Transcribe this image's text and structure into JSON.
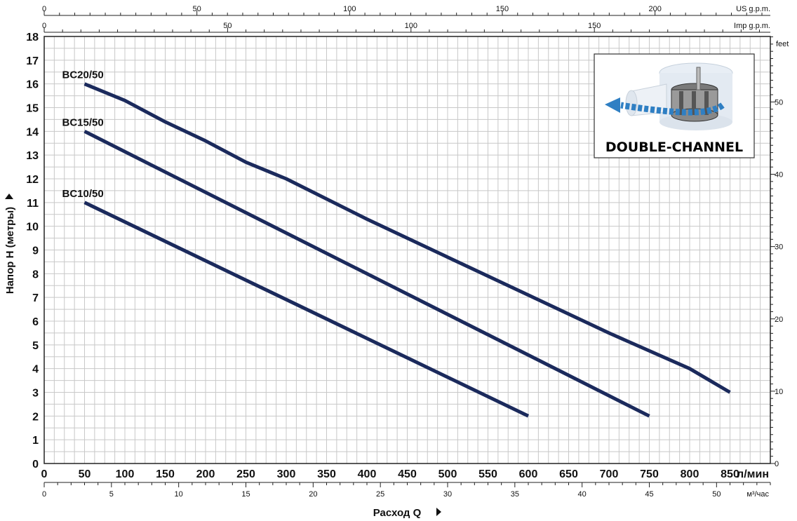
{
  "chart_data": {
    "type": "line",
    "xlabel": "Расход Q",
    "ylabel": "Напор H (метры)",
    "x_unit": "л/мин",
    "xlim": [
      0,
      900
    ],
    "ylim": [
      0,
      18
    ],
    "x_ticks": [
      0,
      50,
      100,
      150,
      200,
      250,
      300,
      350,
      400,
      450,
      500,
      550,
      600,
      650,
      700,
      750,
      800,
      850
    ],
    "y_ticks": [
      0,
      1,
      2,
      3,
      4,
      5,
      6,
      7,
      8,
      9,
      10,
      11,
      12,
      13,
      14,
      15,
      16,
      17,
      18
    ],
    "grid": true,
    "secondary_axes": {
      "us_gpm": {
        "label": "US g.p.m.",
        "ticks": [
          0,
          50,
          100,
          150,
          200
        ]
      },
      "imp_gpm": {
        "label": "Imp g.p.m.",
        "ticks": [
          0,
          50,
          100,
          150
        ]
      },
      "feet": {
        "label": "feet",
        "ticks": [
          0,
          10,
          20,
          30,
          40,
          50
        ]
      },
      "m3h": {
        "label": "м³/час",
        "ticks": [
          0,
          5,
          10,
          15,
          20,
          25,
          30,
          35,
          40,
          45,
          50
        ]
      }
    },
    "series": [
      {
        "name": "BC20/50",
        "x": [
          50,
          100,
          150,
          200,
          250,
          300,
          400,
          500,
          600,
          700,
          800,
          850
        ],
        "y": [
          16,
          15.3,
          14.4,
          13.6,
          12.7,
          12,
          10.3,
          8.7,
          7.1,
          5.5,
          4,
          3
        ]
      },
      {
        "name": "BC15/50",
        "x": [
          50,
          750
        ],
        "y": [
          14,
          2
        ]
      },
      {
        "name": "BC10/50",
        "x": [
          50,
          600
        ],
        "y": [
          11,
          2
        ]
      }
    ],
    "line_color": "#1b2a5c",
    "inset": {
      "title": "DOUBLE-CHANNEL",
      "accent_color": "#2f7fc3"
    }
  }
}
